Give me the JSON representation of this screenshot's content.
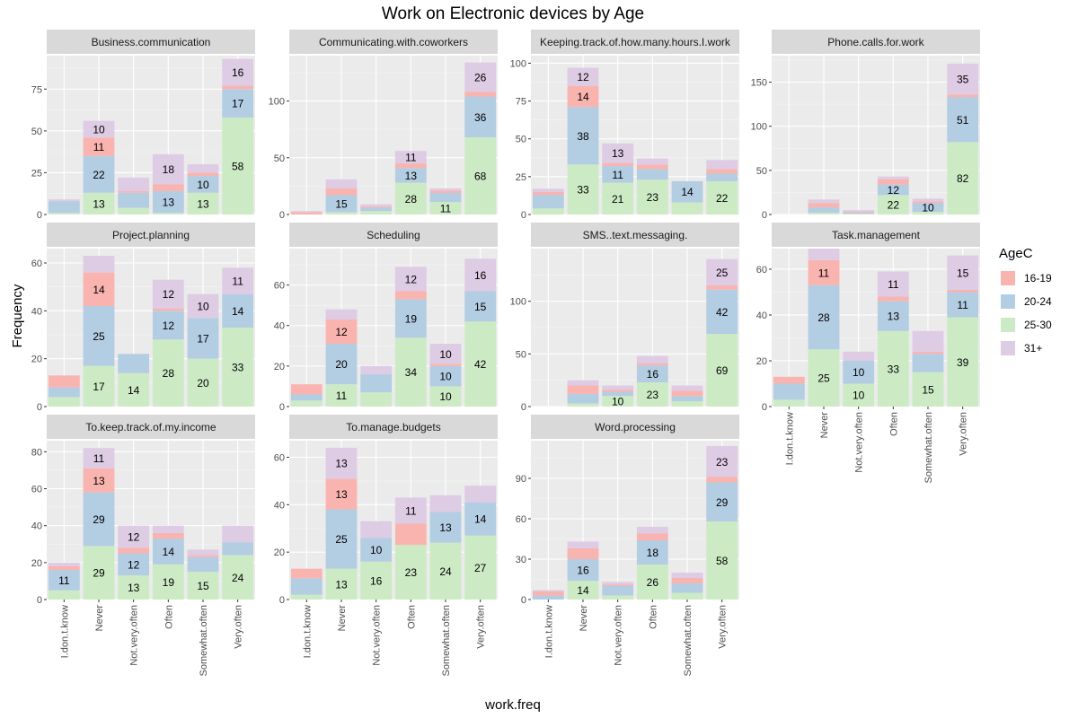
{
  "chart_data": {
    "type": "bar",
    "stacked": true,
    "title": "Work on Electronic devices by Age",
    "xlabel": "work.freq",
    "ylabel": "Frequency",
    "categories": [
      "I.don.t.know",
      "Never",
      "Not.very.often",
      "Often",
      "Somewhat.often",
      "Very.often"
    ],
    "legend": {
      "title": "AgeC",
      "position": "right",
      "entries": [
        {
          "name": "16-19",
          "color": "#F9B4B0"
        },
        {
          "name": "20-24",
          "color": "#B3CDE3"
        },
        {
          "name": "25-30",
          "color": "#CCEBC5"
        },
        {
          "name": "31+",
          "color": "#DECBE4"
        }
      ]
    },
    "stack_order_bottom_to_top": [
      "25-30",
      "20-24",
      "16-19",
      "31+"
    ],
    "panels": [
      {
        "name": "Business.communication",
        "ylim": [
          0,
          95
        ],
        "yticks": [
          0,
          25,
          50,
          75
        ],
        "values": {
          "25-30": [
            1,
            13,
            4,
            1,
            13,
            58
          ],
          "20-24": [
            7,
            22,
            9,
            13,
            10,
            17
          ],
          "16-19": [
            0,
            11,
            1,
            4,
            2,
            2
          ],
          "31+": [
            1,
            10,
            8,
            18,
            5,
            16
          ]
        }
      },
      {
        "name": "Communicating.with.coworkers",
        "ylim": [
          0,
          140
        ],
        "yticks": [
          0,
          50,
          100
        ],
        "values": {
          "25-30": [
            0,
            2,
            3,
            28,
            11,
            68
          ],
          "20-24": [
            0,
            15,
            3,
            13,
            8,
            36
          ],
          "16-19": [
            2,
            6,
            1,
            4,
            2,
            4
          ],
          "31+": [
            1,
            8,
            2,
            11,
            2,
            26
          ]
        }
      },
      {
        "name": "Keeping.track.of.how.many.hours.I.work",
        "ylim": [
          0,
          105
        ],
        "yticks": [
          0,
          25,
          50,
          75,
          100
        ],
        "values": {
          "25-30": [
            4,
            33,
            21,
            23,
            8,
            22
          ],
          "20-24": [
            9,
            38,
            11,
            7,
            14,
            5
          ],
          "16-19": [
            2,
            14,
            2,
            3,
            0,
            3
          ],
          "31+": [
            2,
            12,
            13,
            4,
            0,
            6
          ]
        }
      },
      {
        "name": "Phone.calls.for.work",
        "ylim": [
          0,
          180
        ],
        "yticks": [
          0,
          50,
          100,
          150
        ],
        "values": {
          "25-30": [
            0,
            2,
            1,
            22,
            3,
            82
          ],
          "20-24": [
            0,
            6,
            1,
            12,
            10,
            51
          ],
          "16-19": [
            0,
            5,
            1,
            6,
            2,
            3
          ],
          "31+": [
            0,
            4,
            2,
            3,
            3,
            35
          ]
        }
      },
      {
        "name": "Project.planning",
        "ylim": [
          0,
          66
        ],
        "yticks": [
          0,
          20,
          40,
          60
        ],
        "values": {
          "25-30": [
            4,
            17,
            14,
            28,
            20,
            33
          ],
          "20-24": [
            4,
            25,
            8,
            12,
            17,
            14
          ],
          "16-19": [
            5,
            14,
            0,
            1,
            0,
            0
          ],
          "31+": [
            0,
            7,
            0,
            12,
            10,
            11
          ]
        }
      },
      {
        "name": "Scheduling",
        "ylim": [
          0,
          78
        ],
        "yticks": [
          0,
          20,
          40,
          60
        ],
        "values": {
          "25-30": [
            3,
            11,
            7,
            34,
            10,
            42
          ],
          "20-24": [
            3,
            20,
            9,
            19,
            10,
            15
          ],
          "16-19": [
            5,
            12,
            0,
            4,
            1,
            0
          ],
          "31+": [
            0,
            5,
            4,
            12,
            10,
            16
          ]
        }
      },
      {
        "name": "SMS..text.messaging.",
        "ylim": [
          0,
          150
        ],
        "yticks": [
          0,
          50,
          100
        ],
        "values": {
          "25-30": [
            0,
            3,
            10,
            23,
            5,
            69
          ],
          "20-24": [
            0,
            9,
            4,
            16,
            5,
            42
          ],
          "16-19": [
            0,
            8,
            2,
            2,
            5,
            4
          ],
          "31+": [
            0,
            5,
            4,
            7,
            5,
            25
          ]
        }
      },
      {
        "name": "Task.management",
        "ylim": [
          0,
          69
        ],
        "yticks": [
          0,
          20,
          40,
          60
        ],
        "values": {
          "25-30": [
            3,
            25,
            10,
            33,
            15,
            39
          ],
          "20-24": [
            7,
            28,
            10,
            13,
            8,
            11
          ],
          "16-19": [
            3,
            11,
            0,
            2,
            1,
            1
          ],
          "31+": [
            0,
            5,
            4,
            11,
            9,
            15
          ]
        }
      },
      {
        "name": "To.keep.track.of.my.income",
        "ylim": [
          0,
          86
        ],
        "yticks": [
          0,
          20,
          40,
          60,
          80
        ],
        "values": {
          "25-30": [
            5,
            29,
            13,
            19,
            15,
            24
          ],
          "20-24": [
            11,
            29,
            12,
            14,
            8,
            7
          ],
          "16-19": [
            2,
            13,
            3,
            3,
            1,
            0
          ],
          "31+": [
            2,
            11,
            12,
            4,
            3,
            9
          ]
        }
      },
      {
        "name": "To.manage.budgets",
        "ylim": [
          0,
          67
        ],
        "yticks": [
          0,
          20,
          40,
          60
        ],
        "values": {
          "25-30": [
            2,
            13,
            16,
            23,
            24,
            27
          ],
          "20-24": [
            7,
            25,
            10,
            0,
            13,
            14
          ],
          "16-19": [
            4,
            13,
            0,
            9,
            0,
            0
          ],
          "31+": [
            0,
            13,
            7,
            11,
            7,
            7
          ]
        }
      },
      {
        "name": "Word.processing",
        "ylim": [
          0,
          118
        ],
        "yticks": [
          0,
          30,
          60,
          90
        ],
        "values": {
          "25-30": [
            0,
            14,
            3,
            26,
            5,
            58
          ],
          "20-24": [
            3,
            16,
            7,
            18,
            7,
            29
          ],
          "16-19": [
            3,
            8,
            1,
            5,
            4,
            4
          ],
          "31+": [
            1,
            5,
            2,
            5,
            4,
            23
          ]
        }
      }
    ]
  }
}
